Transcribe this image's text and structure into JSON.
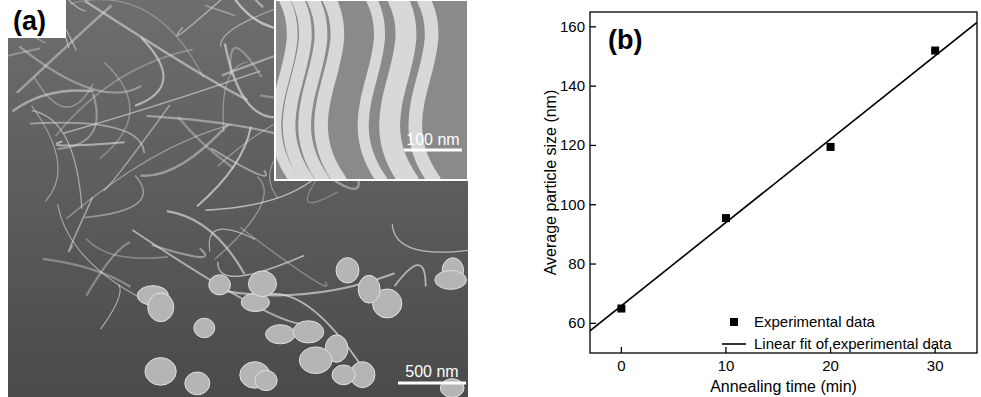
{
  "image_panel": {
    "label": "(a)",
    "inset_scale_bar": "100 nm",
    "scale_bar": "500 nm"
  },
  "chart_data": {
    "type": "scatter",
    "title": "(b)",
    "x_label": "Annealing time (min)",
    "y_label": "Average particle size (nm)",
    "xlim": [
      -3,
      34
    ],
    "xticks": [
      0,
      10,
      20,
      30
    ],
    "ylim": [
      50,
      165
    ],
    "yticks": [
      60,
      80,
      100,
      120,
      140,
      160
    ],
    "grid": false,
    "legend": "lower right",
    "series": [
      {
        "name": "Experimental data",
        "type": "scatter",
        "marker": "square",
        "color": "#000000",
        "x": [
          0,
          10,
          20,
          30
        ],
        "values": [
          65,
          95.5,
          119.5,
          152
        ]
      },
      {
        "name": "Linear fit of experimental data",
        "type": "line",
        "line_style": "solid",
        "color": "#000000",
        "x": [
          -3,
          34
        ],
        "values": [
          57.5,
          161.5
        ]
      }
    ]
  }
}
